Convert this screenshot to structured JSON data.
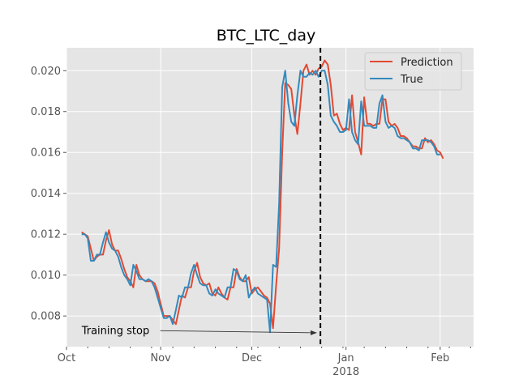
{
  "chart_data": {
    "type": "line",
    "title": "BTC_LTC_day",
    "xlabel": "",
    "ylabel": "",
    "xlim": [
      "2017-10-01",
      "2018-02-12"
    ],
    "ylim": [
      0.0065,
      0.02112
    ],
    "grid": true,
    "legend_position": "top-right",
    "x_ticks": [
      {
        "date": "2017-10-01",
        "label": "Oct",
        "sublabel": ""
      },
      {
        "date": "2017-11-01",
        "label": "Nov",
        "sublabel": ""
      },
      {
        "date": "2017-12-01",
        "label": "Dec",
        "sublabel": ""
      },
      {
        "date": "2018-01-01",
        "label": "Jan",
        "sublabel": "2018"
      },
      {
        "date": "2018-02-01",
        "label": "Feb",
        "sublabel": ""
      }
    ],
    "y_ticks": [
      {
        "value": 0.008,
        "label": "0.008"
      },
      {
        "value": 0.01,
        "label": "0.010"
      },
      {
        "value": 0.012,
        "label": "0.012"
      },
      {
        "value": 0.014,
        "label": "0.014"
      },
      {
        "value": 0.016,
        "label": "0.016"
      },
      {
        "value": 0.018,
        "label": "0.018"
      },
      {
        "value": 0.02,
        "label": "0.020"
      }
    ],
    "series": [
      {
        "name": "Prediction",
        "color": "#E24A33",
        "start_date": "2017-10-06",
        "interval_days": 1,
        "values": [
          0.0121,
          0.012,
          0.0119,
          0.0113,
          0.0107,
          0.0109,
          0.011,
          0.011,
          0.0117,
          0.0122,
          0.0115,
          0.0112,
          0.0112,
          0.0108,
          0.0103,
          0.0099,
          0.0097,
          0.0094,
          0.0105,
          0.01,
          0.0098,
          0.0097,
          0.0097,
          0.0097,
          0.0096,
          0.0092,
          0.0086,
          0.008,
          0.008,
          0.008,
          0.0078,
          0.0076,
          0.0083,
          0.009,
          0.0089,
          0.0094,
          0.0094,
          0.0102,
          0.0106,
          0.0099,
          0.0096,
          0.0095,
          0.0096,
          0.0091,
          0.009,
          0.0094,
          0.0091,
          0.0089,
          0.0088,
          0.0094,
          0.0094,
          0.0103,
          0.0099,
          0.0097,
          0.0097,
          0.0099,
          0.0091,
          0.0093,
          0.0094,
          0.0092,
          0.009,
          0.0089,
          0.0086,
          0.0074,
          0.0095,
          0.0113,
          0.016,
          0.0194,
          0.0193,
          0.0191,
          0.0178,
          0.0169,
          0.0184,
          0.02,
          0.0203,
          0.0198,
          0.02,
          0.0198,
          0.0201,
          0.0202,
          0.0205,
          0.0203,
          0.0193,
          0.0178,
          0.0179,
          0.0174,
          0.0171,
          0.0172,
          0.0171,
          0.0188,
          0.017,
          0.0165,
          0.0159,
          0.0187,
          0.0174,
          0.0174,
          0.0173,
          0.0174,
          0.0174,
          0.0186,
          0.0186,
          0.0175,
          0.0173,
          0.0174,
          0.0172,
          0.0168,
          0.0168,
          0.0167,
          0.0165,
          0.0163,
          0.0163,
          0.0162,
          0.0162,
          0.0167,
          0.0165,
          0.0166,
          0.0164,
          0.0161,
          0.016,
          0.0157
        ]
      },
      {
        "name": "True",
        "color": "#348ABD",
        "start_date": "2017-10-06",
        "interval_days": 1,
        "values": [
          0.012,
          0.012,
          0.0118,
          0.0107,
          0.0107,
          0.011,
          0.011,
          0.0116,
          0.0121,
          0.0116,
          0.0113,
          0.0112,
          0.0109,
          0.0104,
          0.01,
          0.0098,
          0.0095,
          0.0105,
          0.0102,
          0.0098,
          0.0098,
          0.0097,
          0.0098,
          0.0097,
          0.0094,
          0.0089,
          0.0084,
          0.0079,
          0.0079,
          0.008,
          0.0076,
          0.0083,
          0.009,
          0.0089,
          0.0094,
          0.0094,
          0.0101,
          0.0105,
          0.01,
          0.0096,
          0.0095,
          0.0095,
          0.0091,
          0.009,
          0.0093,
          0.0091,
          0.009,
          0.0089,
          0.0094,
          0.0094,
          0.0103,
          0.0102,
          0.0098,
          0.0097,
          0.01,
          0.0089,
          0.0092,
          0.0094,
          0.0091,
          0.009,
          0.0089,
          0.0088,
          0.0072,
          0.0105,
          0.0104,
          0.0135,
          0.0192,
          0.02,
          0.0184,
          0.0175,
          0.0173,
          0.0188,
          0.02,
          0.0197,
          0.0197,
          0.0199,
          0.0198,
          0.02,
          0.0197,
          0.02,
          0.02,
          0.0193,
          0.0178,
          0.0175,
          0.0173,
          0.017,
          0.017,
          0.0171,
          0.0186,
          0.017,
          0.0166,
          0.0164,
          0.0185,
          0.0173,
          0.0173,
          0.0173,
          0.0172,
          0.0172,
          0.0184,
          0.0188,
          0.0175,
          0.0172,
          0.0173,
          0.0172,
          0.0168,
          0.0167,
          0.0167,
          0.0166,
          0.0165,
          0.0162,
          0.0162,
          0.0161,
          0.0166,
          0.0166,
          0.0166,
          0.0165,
          0.0163,
          0.0159,
          0.0159
        ]
      }
    ],
    "vline": {
      "date": "2017-12-23T14:00",
      "style": "dashed",
      "color": "#000000"
    },
    "annotation": {
      "text": "Training stop",
      "text_date": "2017-10-06",
      "text_value": 0.00732,
      "arrow_date": "2017-12-23",
      "arrow_value": 0.00718
    }
  }
}
